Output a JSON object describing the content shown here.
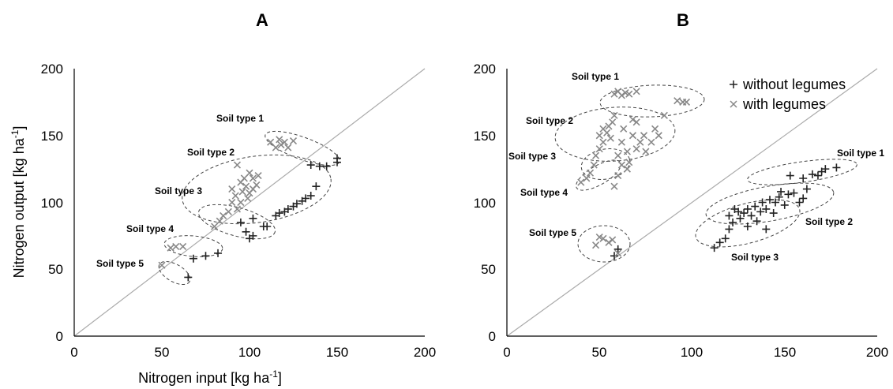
{
  "chart_data": [
    {
      "type": "scatter",
      "title": "A",
      "xlabel": "Nitrogen input [kg ha-1]",
      "ylabel": "Nitrogen output [kg ha-1]",
      "xlim": [
        0,
        200
      ],
      "ylim": [
        0,
        200
      ],
      "xticks": [
        "0",
        "50",
        "100",
        "150",
        "200"
      ],
      "yticks": [
        "0",
        "50",
        "100",
        "150",
        "200"
      ],
      "reference_line": "1:1",
      "series": [
        {
          "name": "without legumes",
          "marker": "+",
          "color": "#222222",
          "points": [
            [
              65,
              44
            ],
            [
              68,
              58
            ],
            [
              75,
              60
            ],
            [
              82,
              62
            ],
            [
              95,
              85
            ],
            [
              98,
              78
            ],
            [
              100,
              73
            ],
            [
              102,
              75
            ],
            [
              102,
              88
            ],
            [
              108,
              82
            ],
            [
              110,
              82
            ],
            [
              115,
              90
            ],
            [
              117,
              92
            ],
            [
              120,
              93
            ],
            [
              122,
              95
            ],
            [
              125,
              97
            ],
            [
              127,
              99
            ],
            [
              130,
              101
            ],
            [
              132,
              103
            ],
            [
              135,
              105
            ],
            [
              138,
              112
            ],
            [
              135,
              128
            ],
            [
              140,
              127
            ],
            [
              144,
              127
            ],
            [
              150,
              133
            ],
            [
              150,
              130
            ]
          ]
        },
        {
          "name": "with legumes",
          "marker": "x",
          "color": "#888888",
          "points": [
            [
              50,
              53
            ],
            [
              55,
              66
            ],
            [
              58,
              67
            ],
            [
              62,
              67
            ],
            [
              80,
              82
            ],
            [
              83,
              86
            ],
            [
              85,
              90
            ],
            [
              88,
              93
            ],
            [
              90,
              100
            ],
            [
              90,
              110
            ],
            [
              92,
              105
            ],
            [
              93,
              95
            ],
            [
              95,
              100
            ],
            [
              95,
              115
            ],
            [
              96,
              108
            ],
            [
              97,
              118
            ],
            [
              98,
              112
            ],
            [
              99,
              103
            ],
            [
              100,
              107
            ],
            [
              100,
              122
            ],
            [
              102,
              110
            ],
            [
              102,
              118
            ],
            [
              104,
              113
            ],
            [
              105,
              120
            ],
            [
              93,
              128
            ],
            [
              112,
              145
            ],
            [
              115,
              141
            ],
            [
              117,
              147
            ],
            [
              118,
              143
            ],
            [
              120,
              145
            ],
            [
              122,
              141
            ],
            [
              125,
              146
            ]
          ]
        }
      ],
      "annotations": [
        "Soil type 1",
        "Soil type 2",
        "Soil type 3",
        "Soil type 4",
        "Soil type 5"
      ]
    },
    {
      "type": "scatter",
      "title": "B",
      "xlabel": "",
      "ylabel": "",
      "xlim": [
        0,
        200
      ],
      "ylim": [
        0,
        200
      ],
      "xticks": [
        "0",
        "50",
        "100",
        "150",
        "200"
      ],
      "yticks": [
        "0",
        "50",
        "100",
        "150",
        "200"
      ],
      "reference_line": "1:1",
      "legend": {
        "placement": "top-right",
        "entries": [
          "without legumes",
          "with legumes"
        ]
      },
      "series": [
        {
          "name": "without legumes",
          "marker": "+",
          "color": "#222222",
          "points": [
            [
              58,
              60
            ],
            [
              60,
              65
            ],
            [
              112,
              66
            ],
            [
              115,
              70
            ],
            [
              118,
              73
            ],
            [
              120,
              80
            ],
            [
              120,
              90
            ],
            [
              122,
              85
            ],
            [
              123,
              95
            ],
            [
              125,
              93
            ],
            [
              126,
              88
            ],
            [
              128,
              92
            ],
            [
              130,
              95
            ],
            [
              130,
              82
            ],
            [
              132,
              90
            ],
            [
              134,
              97
            ],
            [
              135,
              86
            ],
            [
              137,
              93
            ],
            [
              138,
              100
            ],
            [
              140,
              95
            ],
            [
              140,
              80
            ],
            [
              142,
              102
            ],
            [
              144,
              92
            ],
            [
              145,
              100
            ],
            [
              147,
              104
            ],
            [
              148,
              108
            ],
            [
              150,
              98
            ],
            [
              152,
              106
            ],
            [
              153,
              120
            ],
            [
              155,
              107
            ],
            [
              158,
              100
            ],
            [
              160,
              103
            ],
            [
              160,
              118
            ],
            [
              162,
              110
            ],
            [
              165,
              121
            ],
            [
              168,
              120
            ],
            [
              170,
              123
            ],
            [
              172,
              125
            ],
            [
              178,
              126
            ]
          ]
        },
        {
          "name": "with legumes",
          "marker": "x",
          "color": "#888888",
          "points": [
            [
              48,
              68
            ],
            [
              50,
              74
            ],
            [
              52,
              73
            ],
            [
              55,
              70
            ],
            [
              57,
              72
            ],
            [
              60,
              62
            ],
            [
              40,
              115
            ],
            [
              43,
              118
            ],
            [
              45,
              122
            ],
            [
              47,
              128
            ],
            [
              48,
              135
            ],
            [
              50,
              140
            ],
            [
              50,
              150
            ],
            [
              52,
              145
            ],
            [
              52,
              155
            ],
            [
              54,
              152
            ],
            [
              55,
              157
            ],
            [
              56,
              148
            ],
            [
              57,
              160
            ],
            [
              58,
              165
            ],
            [
              58,
              112
            ],
            [
              60,
              120
            ],
            [
              60,
              135
            ],
            [
              62,
              128
            ],
            [
              62,
              145
            ],
            [
              63,
              155
            ],
            [
              65,
              125
            ],
            [
              65,
              138
            ],
            [
              66,
              130
            ],
            [
              68,
              150
            ],
            [
              70,
              140
            ],
            [
              72,
              145
            ],
            [
              74,
              150
            ],
            [
              75,
              138
            ],
            [
              78,
              145
            ],
            [
              80,
              155
            ],
            [
              82,
              150
            ],
            [
              85,
              165
            ],
            [
              68,
              162
            ],
            [
              70,
              160
            ],
            [
              58,
              181
            ],
            [
              60,
              183
            ],
            [
              62,
              180
            ],
            [
              64,
              182
            ],
            [
              66,
              181
            ],
            [
              70,
              183
            ],
            [
              92,
              176
            ],
            [
              95,
              175
            ],
            [
              97,
              175
            ]
          ]
        }
      ],
      "annotations": [
        "Soil type 1",
        "Soil type 2",
        "Soil type 3",
        "Soil type 4",
        "Soil type 5",
        "Soil type 1",
        "Soil type 2",
        "Soil type 3"
      ]
    }
  ]
}
